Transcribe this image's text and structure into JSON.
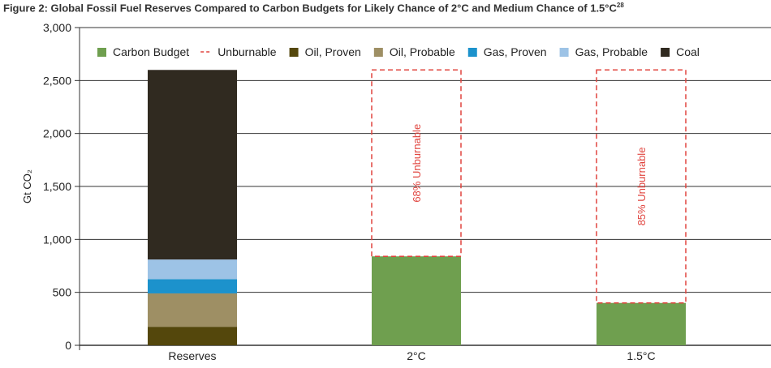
{
  "title": "Figure 2: Global Fossil Fuel Reserves Compared to Carbon Budgets for Likely Chance of 2°C and Medium Chance of 1.5°C",
  "title_sup": "28",
  "chart_data": {
    "type": "bar",
    "stacked": true,
    "ylabel": "Gt CO₂",
    "ylim": [
      0,
      3000
    ],
    "yticks": [
      0,
      500,
      1000,
      1500,
      2000,
      2500,
      3000
    ],
    "ytick_labels": [
      "0",
      "500",
      "1,000",
      "1,500",
      "2,000",
      "2,500",
      "3,000"
    ],
    "grid": true,
    "legend_position": "top",
    "categories": [
      "Reserves",
      "2°C",
      "1.5°C"
    ],
    "series": [
      {
        "name": "Carbon Budget",
        "color": "#6f9f4f",
        "values": [
          0,
          840,
          400
        ]
      },
      {
        "name": "Unburnable",
        "color": "#e0443e",
        "dashed": true,
        "values": [
          0,
          1760,
          2200
        ]
      },
      {
        "name": "Oil, Proven",
        "color": "#54470c",
        "values": [
          175,
          0,
          0
        ]
      },
      {
        "name": "Oil, Probable",
        "color": "#9e8f64",
        "values": [
          315,
          0,
          0
        ]
      },
      {
        "name": "Gas, Proven",
        "color": "#1c92cc",
        "values": [
          135,
          0,
          0
        ]
      },
      {
        "name": "Gas, Probable",
        "color": "#9dc3e6",
        "values": [
          185,
          0,
          0
        ]
      },
      {
        "name": "Coal",
        "color": "#302a20",
        "values": [
          1790,
          0,
          0
        ]
      }
    ],
    "annotations": [
      {
        "category": "2°C",
        "text": "68% Unburnable"
      },
      {
        "category": "1.5°C",
        "text": "85% Unburnable"
      }
    ]
  }
}
